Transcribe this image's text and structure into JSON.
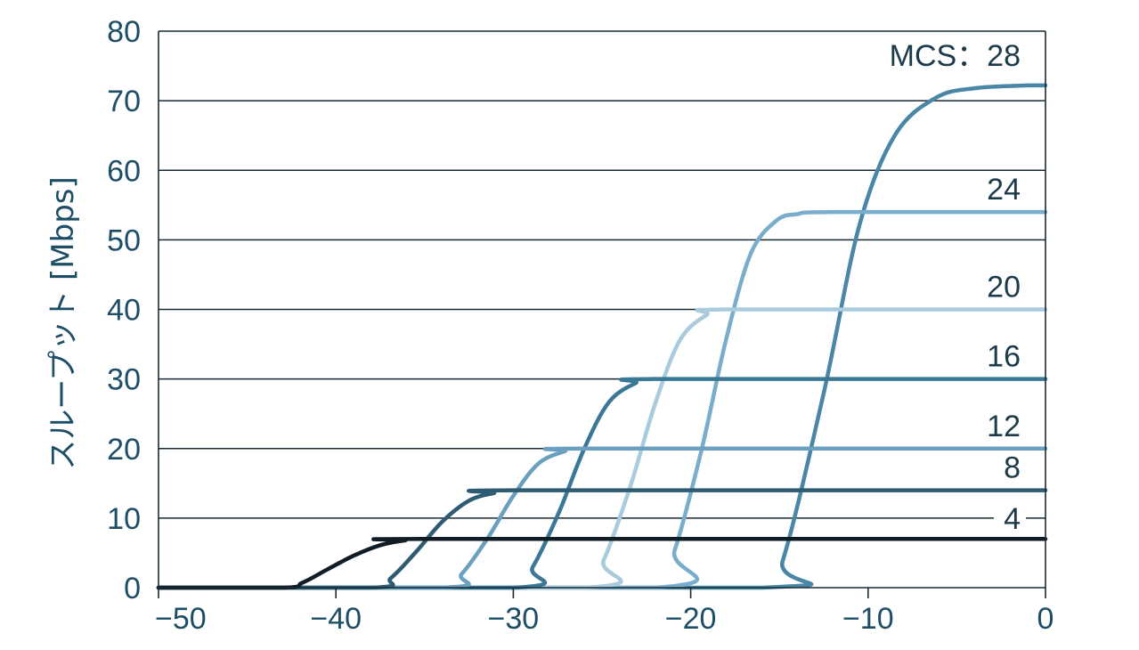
{
  "chart_data": {
    "type": "line",
    "title": "",
    "xlabel": "",
    "ylabel": "スループット [Mbps]",
    "xlim": [
      -50,
      0
    ],
    "ylim": [
      0,
      80
    ],
    "x_ticks": [
      "−50",
      "−40",
      "−30",
      "−20",
      "−10",
      "0"
    ],
    "y_ticks": [
      "0",
      "10",
      "20",
      "30",
      "40",
      "50",
      "60",
      "70",
      "80"
    ],
    "grid": "horizontal",
    "series": [
      {
        "name": "4",
        "label": "4",
        "color": "#111d26",
        "x": [
          -50,
          -43,
          -41.9,
          -40.5,
          -39,
          -37.5,
          -36.1,
          -35,
          0
        ],
        "y": [
          0,
          0,
          0.7,
          2.6,
          4.6,
          6.1,
          6.8,
          7,
          7
        ]
      },
      {
        "name": "8",
        "label": "8",
        "color": "#2e5a73",
        "x": [
          -50,
          -38,
          -36.9,
          -35.5,
          -34,
          -32.5,
          -31.1,
          -30,
          0
        ],
        "y": [
          0,
          0,
          1.4,
          5.1,
          9.5,
          12.5,
          13.6,
          14,
          14
        ]
      },
      {
        "name": "12",
        "label": "12",
        "color": "#6a9fbf",
        "x": [
          -50,
          -34,
          -32.9,
          -31.4,
          -30,
          -28.6,
          -27.1,
          -26,
          0
        ],
        "y": [
          0,
          0,
          2,
          7.3,
          13.2,
          17.8,
          19.6,
          20,
          20
        ]
      },
      {
        "name": "16",
        "label": "16",
        "color": "#3a7896",
        "x": [
          -50,
          -30,
          -28.9,
          -27.4,
          -26,
          -24.6,
          -23.1,
          -22,
          0
        ],
        "y": [
          0,
          0,
          3,
          11,
          20,
          26.7,
          29.4,
          30,
          30
        ]
      },
      {
        "name": "20",
        "label": "20",
        "color": "#a9cbdd",
        "x": [
          -50,
          -26,
          -24.9,
          -23.4,
          -22,
          -20.6,
          -19.1,
          -18,
          0
        ],
        "y": [
          0,
          0,
          4,
          14.6,
          26.5,
          35.6,
          39.2,
          40,
          40
        ]
      },
      {
        "name": "24",
        "label": "24",
        "color": "#7aaccb",
        "x": [
          -50,
          -22,
          -20.9,
          -19.4,
          -18,
          -16.6,
          -15.1,
          -14,
          -12,
          0
        ],
        "y": [
          0,
          0,
          5.4,
          19.7,
          35.7,
          48.1,
          52.9,
          53.7,
          54,
          54
        ]
      },
      {
        "name": "28",
        "label": "MCS：28",
        "color": "#4a86a6",
        "x": [
          -50,
          -16,
          -14.8,
          -12.5,
          -10.5,
          -8.5,
          -6.2,
          -4,
          -1,
          0
        ],
        "y": [
          0,
          0,
          4,
          28,
          52,
          65,
          70.4,
          71.8,
          72.2,
          72.2
        ]
      }
    ]
  }
}
